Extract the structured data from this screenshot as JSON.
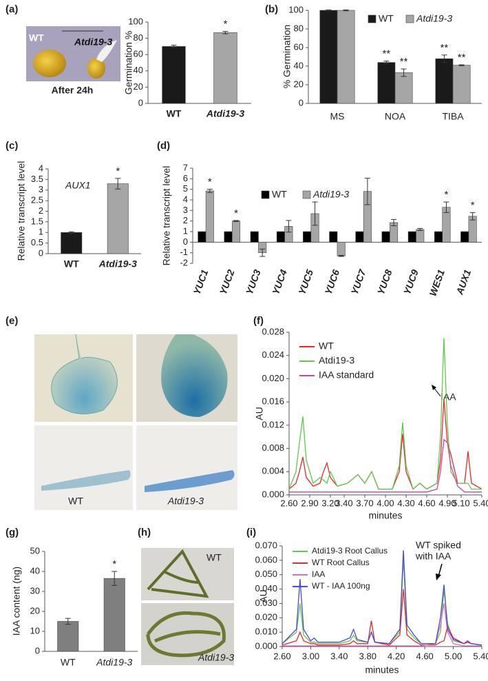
{
  "panel_labels": [
    "(a)",
    "(b)",
    "(c)",
    "(d)",
    "(e)",
    "(f)",
    "(g)",
    "(h)",
    "(i)"
  ],
  "photos": {
    "a": {
      "labels": [
        "WT",
        "Atdi19-3"
      ],
      "caption": "After 24h"
    },
    "e": {
      "labels": [
        "WT",
        "Atdi19-3"
      ]
    },
    "h": {
      "labels": [
        "WT",
        "Atdi19-3"
      ]
    }
  },
  "chart_data": [
    {
      "type": "bar",
      "ylabel": "Germination %",
      "categories": [
        "WT",
        "Atdi19-3"
      ],
      "values": [
        70,
        87
      ],
      "errors": [
        1.5,
        1.5
      ],
      "stars": [
        null,
        "*"
      ],
      "colors": [
        "#1a1a1a",
        "#a6a6a6"
      ],
      "ylim": [
        0,
        100
      ],
      "yticks": [
        0,
        20,
        40,
        60,
        80,
        100
      ]
    },
    {
      "type": "bar",
      "ylabel": "% Germination",
      "categories": [
        "MS",
        "NOA",
        "TIBA"
      ],
      "series": [
        {
          "name": "WT",
          "color": "#1a1a1a",
          "values": [
            100,
            44,
            48
          ],
          "errors": [
            0.5,
            1.5,
            4
          ],
          "stars": [
            null,
            "**",
            "**"
          ]
        },
        {
          "name": "Atdi19-3",
          "color": "#a6a6a6",
          "values": [
            100,
            33,
            41
          ],
          "errors": [
            0.5,
            4,
            0.5
          ],
          "stars": [
            null,
            "**",
            "**"
          ]
        }
      ],
      "ylim": [
        0,
        100
      ],
      "yticks": [
        0,
        20,
        40,
        60,
        80,
        100
      ]
    },
    {
      "type": "bar",
      "ylabel": "Relative transcript level",
      "annotation": "AUX1",
      "categories": [
        "WT",
        "Atdi19-3"
      ],
      "values": [
        1,
        3.3
      ],
      "errors": [
        0.03,
        0.25
      ],
      "stars": [
        null,
        "*"
      ],
      "colors": [
        "#1a1a1a",
        "#a6a6a6"
      ],
      "ylim": [
        0,
        4
      ],
      "yticks": [
        0,
        0.5,
        1,
        1.5,
        2,
        2.5,
        3,
        3.5,
        4
      ]
    },
    {
      "type": "bar",
      "ylabel": "Relative transcript level",
      "categories": [
        "YUC1",
        "YUC2",
        "YUC3",
        "YUC4",
        "YUC5",
        "YUC6",
        "YUC7",
        "YUC8",
        "YUC9",
        "WES1",
        "AUX1"
      ],
      "series": [
        {
          "name": "WT",
          "color": "#000000",
          "values": [
            1,
            1,
            1,
            1,
            1,
            1,
            1,
            1,
            1,
            1,
            1
          ],
          "errors": [
            0,
            0,
            0,
            0,
            0,
            0,
            0,
            0,
            0,
            0,
            0
          ]
        },
        {
          "name": "Atdi19-3",
          "color": "#a6a6a6",
          "values": [
            4.85,
            2,
            -1,
            1.5,
            2.7,
            -1.3,
            4.8,
            1.85,
            1.2,
            3.3,
            2.45
          ],
          "errors": [
            0.15,
            0.05,
            0.35,
            0.55,
            1.1,
            0.05,
            1.25,
            0.3,
            0.1,
            0.5,
            0.35
          ],
          "stars": [
            "*",
            "*",
            null,
            null,
            null,
            null,
            null,
            null,
            null,
            "*",
            "*"
          ]
        }
      ],
      "ylim": [
        -2,
        7
      ],
      "yticks": [
        -2,
        -1,
        0,
        1,
        2,
        3,
        4,
        5,
        6,
        7
      ]
    },
    {
      "type": "line",
      "ylabel": "AU",
      "xlabel": "minutes",
      "annotation": [
        "IAA"
      ],
      "x": [
        2.6,
        2.7,
        2.75,
        2.8,
        2.85,
        2.95,
        3.05,
        3.1,
        3.15,
        3.2,
        3.3,
        3.45,
        3.6,
        3.7,
        3.8,
        3.9,
        4.1,
        4.2,
        4.25,
        4.3,
        4.4,
        4.5,
        4.6,
        4.75,
        4.8,
        4.85,
        4.9,
        4.95,
        5.05,
        5.15,
        5.2,
        5.25,
        5.4
      ],
      "series": [
        {
          "name": "WT",
          "color": "#e8282b",
          "values": [
            0.001,
            0.002,
            0.004,
            0.0065,
            0.003,
            0.0015,
            0.002,
            0.004,
            0.0055,
            0.003,
            0.0015,
            0.002,
            0.0035,
            0.002,
            0.004,
            0.001,
            0.001,
            0.004,
            0.0105,
            0.004,
            0.001,
            0.002,
            0.001,
            0.002,
            0.006,
            0.0165,
            0.009,
            0.007,
            0.002,
            0.002,
            0.0075,
            0.002,
            0.001
          ]
        },
        {
          "name": "Atdi19-3",
          "color": "#5ec94a",
          "values": [
            0.001,
            0.004,
            0.009,
            0.0135,
            0.006,
            0.002,
            0.003,
            0.0025,
            0.002,
            0.004,
            0.0015,
            0.002,
            0.0035,
            0.002,
            0.004,
            0.001,
            0.001,
            0.005,
            0.0125,
            0.005,
            0.001,
            0.002,
            0.001,
            0.002,
            0.01,
            0.027,
            0.012,
            0.004,
            0.002,
            0.002,
            0.002,
            0.001,
            0.001
          ]
        },
        {
          "name": "IAA standard",
          "color": "#d63fa8",
          "values": [
            0.0005,
            0.0005,
            0.0005,
            0.0005,
            0.0005,
            0.0005,
            0.0005,
            0.0005,
            0.0005,
            0.0005,
            0.0005,
            0.0005,
            0.0005,
            0.0005,
            0.0005,
            0.0005,
            0.0005,
            0.0005,
            0.0005,
            0.0005,
            0.0005,
            0.0005,
            0.0005,
            0.001,
            0.004,
            0.0095,
            0.009,
            0.005,
            0.0015,
            0.0005,
            0.0005,
            0.0005,
            0.0005
          ]
        }
      ],
      "xlim": [
        2.6,
        5.4
      ],
      "xticks": [
        {
          "value": 2.6,
          "label": "2.60"
        },
        {
          "value": 2.9,
          "label": "2.90"
        },
        {
          "value": 3.2,
          "label": "3.20"
        },
        {
          "value": 3.4,
          "label": "3.40"
        },
        {
          "value": 3.7,
          "label": "3.70"
        },
        {
          "value": 4.0,
          "label": "4.00"
        },
        {
          "value": 4.3,
          "label": "4.30"
        },
        {
          "value": 4.6,
          "label": "4.60"
        },
        {
          "value": 4.9,
          "label": "4.90"
        },
        {
          "value": 5.1,
          "label": "5.10"
        },
        {
          "value": 5.4,
          "label": "5.40"
        }
      ],
      "ylim": [
        0,
        0.028
      ],
      "yticks": [
        {
          "value": 0,
          "label": "0.000"
        },
        {
          "value": 0.004,
          "label": "0.004"
        },
        {
          "value": 0.008,
          "label": "0.008"
        },
        {
          "value": 0.012,
          "label": "0.012"
        },
        {
          "value": 0.016,
          "label": "0.016"
        },
        {
          "value": 0.02,
          "label": "0.020"
        },
        {
          "value": 0.024,
          "label": "0.024"
        },
        {
          "value": 0.028,
          "label": "0.028"
        }
      ]
    },
    {
      "type": "bar",
      "ylabel": "IAA content (ng)",
      "categories": [
        "WT",
        "Atdi19-3"
      ],
      "values": [
        15,
        36.5
      ],
      "errors": [
        1.5,
        3.5
      ],
      "stars": [
        null,
        "*"
      ],
      "colors": [
        "#7f7f7f",
        "#7f7f7f"
      ],
      "ylim": [
        0,
        50
      ],
      "yticks": [
        0,
        10,
        20,
        30,
        40,
        50
      ]
    },
    {
      "type": "line",
      "ylabel": "AU",
      "xlabel": "minutes",
      "annotation": [
        "WT spiked",
        "with IAA"
      ],
      "x": [
        2.6,
        2.8,
        2.85,
        2.9,
        3.0,
        3.05,
        3.1,
        3.4,
        3.55,
        3.6,
        3.65,
        3.8,
        3.85,
        3.9,
        4.1,
        4.25,
        4.3,
        4.35,
        4.45,
        4.55,
        4.75,
        4.82,
        4.87,
        4.92,
        5.0,
        5.15,
        5.2,
        5.25,
        5.4
      ],
      "series": [
        {
          "name": "Atdi19-3 Root Callus",
          "color": "#5ec94a",
          "values": [
            0.002,
            0.01,
            0.03,
            0.008,
            0.003,
            0.003,
            0.002,
            0.002,
            0.004,
            0.008,
            0.004,
            0.003,
            0.01,
            0.003,
            0.002,
            0.01,
            0.061,
            0.012,
            0.006,
            0.002,
            0.002,
            0.01,
            0.04,
            0.016,
            0.004,
            0.002,
            0.003,
            0.002,
            0.001
          ]
        },
        {
          "name": "WT Root Callus",
          "color": "#e8282b",
          "values": [
            0.001,
            0.004,
            0.01,
            0.004,
            0.002,
            0.002,
            0.001,
            0.001,
            0.002,
            0.004,
            0.002,
            0.002,
            0.018,
            0.003,
            0.001,
            0.008,
            0.04,
            0.008,
            0.004,
            0.001,
            0.001,
            0.003,
            0.004,
            0.014,
            0.006,
            0.002,
            0.004,
            0.002,
            0.001
          ]
        },
        {
          "name": "IAA",
          "color": "#e36bc0",
          "values": [
            0.0005,
            0.0005,
            0.0005,
            0.0005,
            0.0005,
            0.0005,
            0.0005,
            0.0005,
            0.0005,
            0.0005,
            0.0005,
            0.0005,
            0.0005,
            0.0005,
            0.0005,
            0.0005,
            0.0005,
            0.0005,
            0.0005,
            0.0005,
            0.002,
            0.015,
            0.03,
            0.01,
            0.002,
            0.0005,
            0.0005,
            0.0005,
            0.0005
          ]
        },
        {
          "name": "WT - IAA 100ng",
          "color": "#4a4ad6",
          "values": [
            0.002,
            0.012,
            0.047,
            0.012,
            0.004,
            0.006,
            0.003,
            0.003,
            0.006,
            0.012,
            0.005,
            0.003,
            0.01,
            0.003,
            0.002,
            0.012,
            0.067,
            0.015,
            0.008,
            0.002,
            0.002,
            0.02,
            0.043,
            0.012,
            0.005,
            0.002,
            0.003,
            0.002,
            0.001
          ]
        }
      ],
      "xlim": [
        2.6,
        5.4
      ],
      "xticks": [
        {
          "value": 2.6,
          "label": "2.60"
        },
        {
          "value": 3.0,
          "label": "3.00"
        },
        {
          "value": 3.4,
          "label": "3.40"
        },
        {
          "value": 3.8,
          "label": "3.80"
        },
        {
          "value": 4.2,
          "label": "4.20"
        },
        {
          "value": 4.6,
          "label": "4.60"
        },
        {
          "value": 5.0,
          "label": "5.00"
        },
        {
          "value": 5.4,
          "label": "5.40"
        }
      ],
      "ylim": [
        0,
        0.07
      ],
      "yticks": [
        {
          "value": 0,
          "label": "0.000"
        },
        {
          "value": 0.01,
          "label": "0.010"
        },
        {
          "value": 0.02,
          "label": "0.020"
        },
        {
          "value": 0.03,
          "label": "0.030"
        },
        {
          "value": 0.04,
          "label": "0.040"
        },
        {
          "value": 0.05,
          "label": "0.050"
        },
        {
          "value": 0.06,
          "label": "0.060"
        },
        {
          "value": 0.07,
          "label": "0.070"
        }
      ]
    }
  ]
}
